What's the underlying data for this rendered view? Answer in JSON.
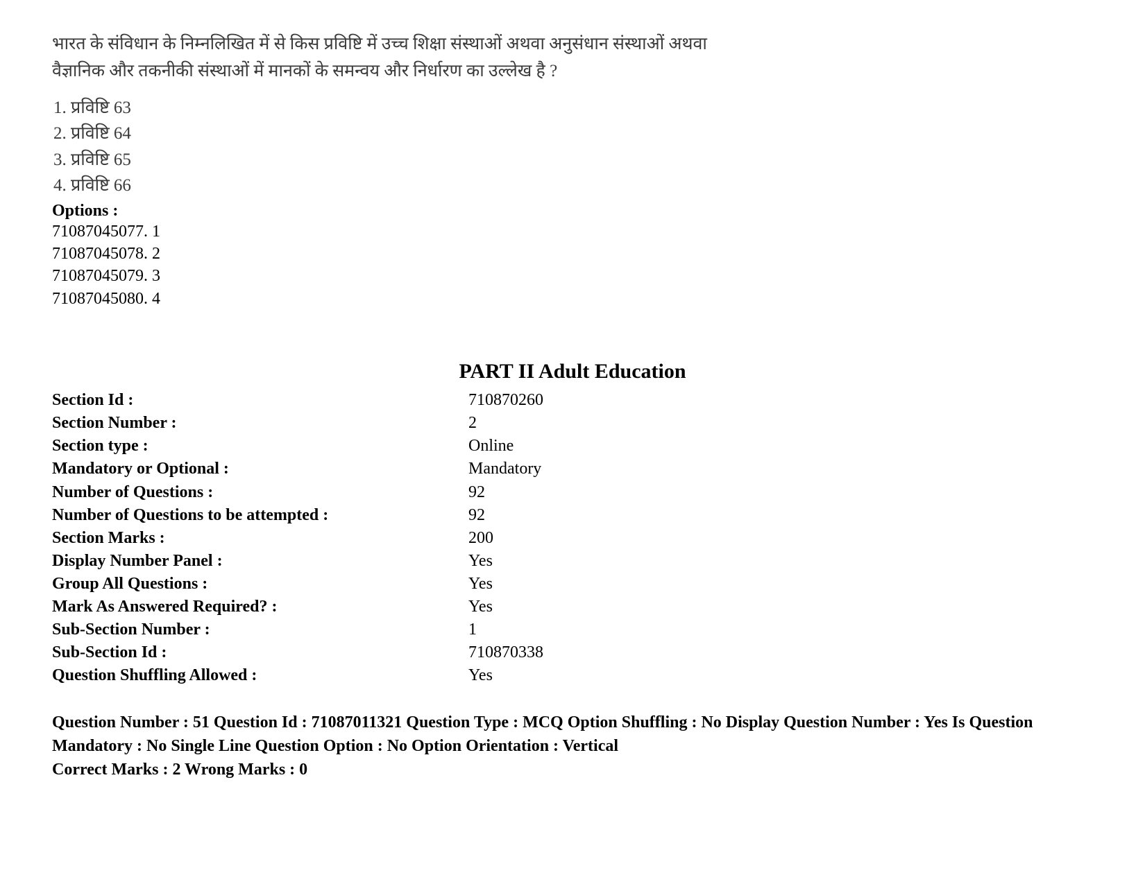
{
  "question": {
    "text_line1": "भारत के संविधान के निम्नलिखित में से किस प्रविष्टि में उच्च शिक्षा संस्थाओं अथवा अनुसंधान संस्थाओं अथवा",
    "text_line2": "वैज्ञानिक और तकनीकी संस्थाओं में मानकों के समन्वय और निर्धारण का उल्लेख है ?",
    "answers": [
      "1. प्रविष्टि 63",
      "2. प्रविष्टि 64",
      "3. प्रविष्टि 65",
      "4. प्रविष्टि 66"
    ],
    "options_label": "Options :",
    "options": [
      "71087045077. 1",
      "71087045078. 2",
      "71087045079. 3",
      "71087045080. 4"
    ]
  },
  "part": {
    "heading": "PART II Adult Education",
    "meta": [
      {
        "label": "Section Id :",
        "value": "710870260"
      },
      {
        "label": "Section Number :",
        "value": "2"
      },
      {
        "label": "Section type :",
        "value": "Online"
      },
      {
        "label": "Mandatory or Optional :",
        "value": "Mandatory"
      },
      {
        "label": "Number of Questions :",
        "value": "92"
      },
      {
        "label": "Number of Questions to be attempted :",
        "value": "92"
      },
      {
        "label": "Section Marks :",
        "value": "200"
      },
      {
        "label": "Display Number Panel :",
        "value": "Yes"
      },
      {
        "label": "Group All Questions :",
        "value": "Yes"
      },
      {
        "label": "Mark As Answered Required? :",
        "value": "Yes"
      },
      {
        "label": "Sub-Section Number :",
        "value": "1"
      },
      {
        "label": "Sub-Section Id :",
        "value": "710870338"
      },
      {
        "label": "Question Shuffling Allowed :",
        "value": "Yes"
      }
    ]
  },
  "qmeta": {
    "line1": "Question Number : 51 Question Id : 71087011321 Question Type : MCQ Option Shuffling : No Display Question Number : Yes Is Question Mandatory : No Single Line Question Option : No Option Orientation : Vertical",
    "line2": "Correct Marks : 2 Wrong Marks : 0"
  }
}
